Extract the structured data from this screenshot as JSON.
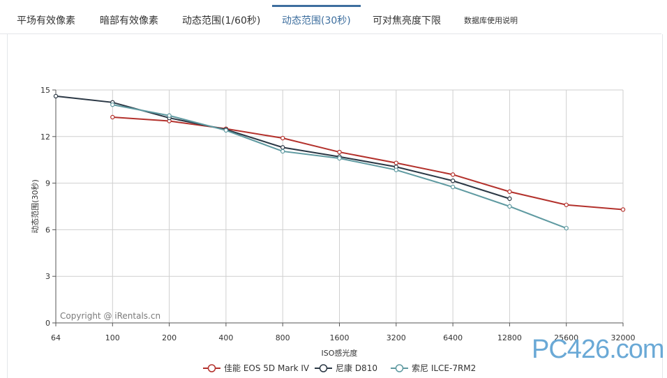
{
  "tabs": [
    {
      "label": "平场有效像素",
      "active": false
    },
    {
      "label": "暗部有效像素",
      "active": false
    },
    {
      "label": "动态范围(1/60秒)",
      "active": false
    },
    {
      "label": "动态范围(30秒)",
      "active": true
    },
    {
      "label": "可对焦亮度下限",
      "active": false
    },
    {
      "label": "数据库使用说明",
      "active": false
    }
  ],
  "watermark": "PC426.com",
  "chart_data": {
    "type": "line",
    "title": "",
    "xlabel": "ISO感光度",
    "ylabel": "动态范围(30秒)",
    "x": [
      "64",
      "100",
      "200",
      "400",
      "800",
      "1600",
      "3200",
      "6400",
      "12800",
      "25600",
      "32000"
    ],
    "ylim": [
      0,
      15
    ],
    "yticks": [
      "0",
      "3",
      "6",
      "9",
      "12",
      "15"
    ],
    "grid": true,
    "legend_position": "bottom",
    "copyright": "Copyright @ iRentals.cn",
    "series": [
      {
        "name": "佳能 EOS 5D Mark IV",
        "color": "#b3312c",
        "values": [
          null,
          13.25,
          13.0,
          12.5,
          11.9,
          11.0,
          10.3,
          9.55,
          8.45,
          7.6,
          7.3
        ]
      },
      {
        "name": "尼康 D810",
        "color": "#2b3845",
        "values": [
          14.6,
          14.2,
          13.2,
          12.45,
          11.3,
          10.7,
          10.05,
          9.15,
          8.0,
          null,
          null
        ]
      },
      {
        "name": "索尼 ILCE-7RM2",
        "color": "#5f9aa1",
        "values": [
          null,
          14.05,
          13.35,
          12.4,
          11.05,
          10.6,
          9.85,
          8.75,
          7.5,
          6.1,
          null
        ]
      }
    ]
  }
}
